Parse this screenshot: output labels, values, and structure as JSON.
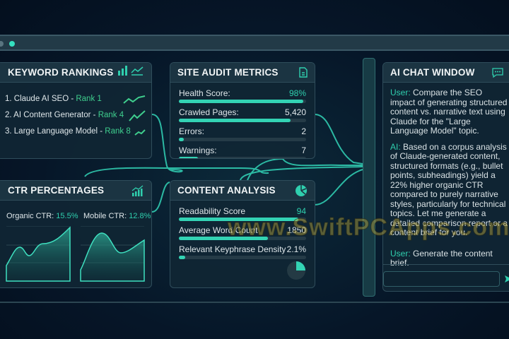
{
  "window": {
    "controls": [
      "inactive",
      "active"
    ]
  },
  "colors": {
    "accent": "#33d3b4",
    "green": "#3fcf8e",
    "background": "#06172a"
  },
  "keyword_rankings": {
    "title": "KEYWORD RANKINGS",
    "icons": [
      "bar-chart-icon",
      "line-chart-icon"
    ],
    "items": [
      {
        "label": "1. Claude AI SEO - ",
        "rank": "Rank 1"
      },
      {
        "label": "2. AI Content Generator - ",
        "rank": "Rank 4"
      },
      {
        "label": "3. Large Language Model - ",
        "rank": "Rank 8"
      }
    ]
  },
  "site_audit": {
    "title": "SITE AUDIT METRICS",
    "icon": "document-icon",
    "metrics": [
      {
        "label": "Health Score:",
        "value": "98%",
        "fill": 0.98
      },
      {
        "label": "Crawled Pages:",
        "value": "5,420",
        "fill": 0.88
      },
      {
        "label": "Errors:",
        "value": "2",
        "fill": 0.02
      },
      {
        "label": "Warnings:",
        "value": "7",
        "fill": 0.15
      }
    ]
  },
  "ctr": {
    "title": "CTR PERCENTAGES",
    "icon": "growth-chart-icon",
    "organic_label": "Organic CTR: ",
    "organic_value": "15.5%",
    "mobile_label": "Mobile CTR: ",
    "mobile_value": "12.8%"
  },
  "content_analysis": {
    "title": "CONTENT ANALYSIS",
    "icon": "pie-chart-icon",
    "metrics": [
      {
        "label": "Readability Score",
        "value": "94",
        "fill": 0.94
      },
      {
        "label": "Average Word Count",
        "value": "1850",
        "fill": 0.7
      },
      {
        "label": "Relevant Keyphrase Density",
        "value": "2.1%",
        "fill": 0.05
      }
    ]
  },
  "chat": {
    "title": "AI CHAT WINDOW",
    "icon": "chat-icon",
    "messages": [
      {
        "speaker": "User:",
        "text": " Compare the SEO impact of generating structured content vs. narrative text using Claude for the \"Large Language Model\" topic."
      },
      {
        "speaker": "AI:",
        "text": " Based on a corpus analysis of Claude-generated content, structured formats (e.g., bullet points, subheadings) yield a 22% higher organic CTR compared to purely narrative styles, particularly for technical topics. Let me generate a detailed comparison report or a content brief for you."
      },
      {
        "speaker": "User:",
        "text": " Generate the content brief."
      }
    ],
    "input_value": ""
  },
  "watermark": "www.SwiftPCApps.com"
}
